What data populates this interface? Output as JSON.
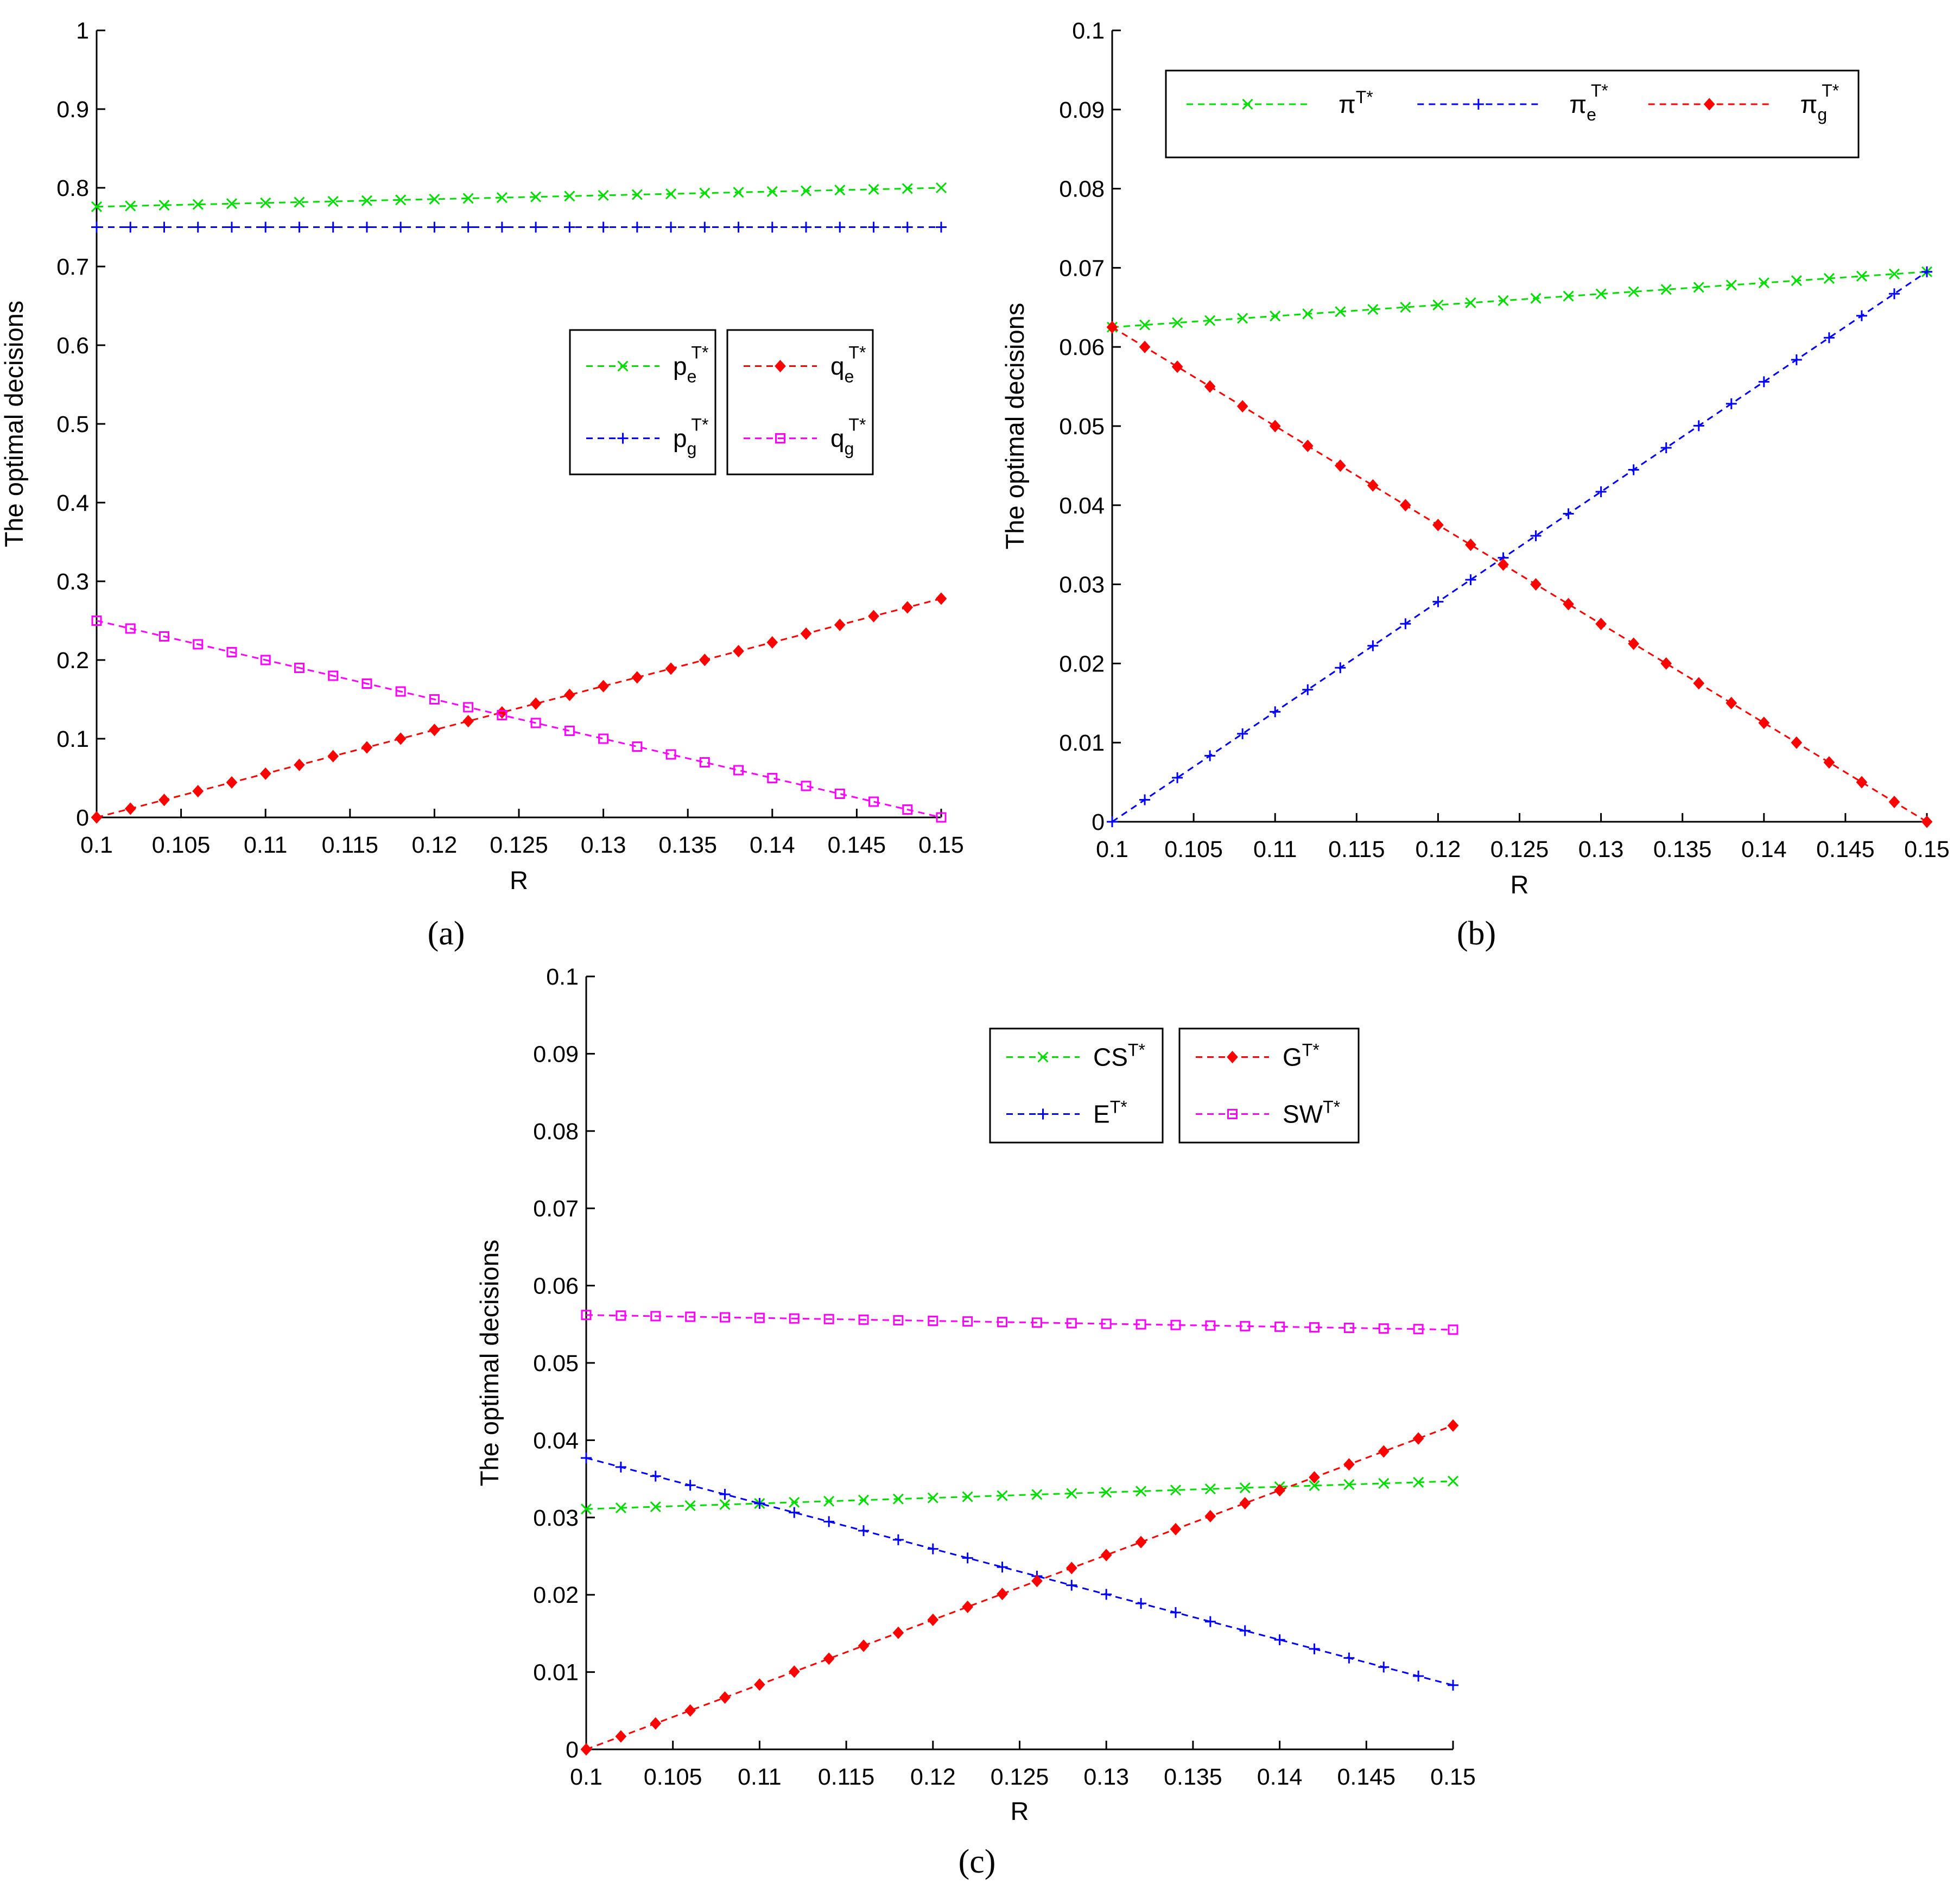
{
  "captions": [
    "(a)",
    "(b)",
    "(c)"
  ],
  "colors": {
    "green": "#00e000",
    "blue": "#0000ff",
    "red": "#ff0000",
    "magenta": "#ff00ff"
  },
  "chart_data": [
    {
      "type": "line",
      "panel": "a",
      "xlabel": "R",
      "ylabel": "The optimal decisions",
      "xlim": [
        0.1,
        0.15
      ],
      "ylim": [
        0,
        1
      ],
      "xticks": [
        "0.1",
        "0.105",
        "0.11",
        "0.115",
        "0.12",
        "0.125",
        "0.13",
        "0.135",
        "0.14",
        "0.145",
        "0.15"
      ],
      "yticks": [
        "0",
        "0.1",
        "0.2",
        "0.3",
        "0.4",
        "0.5",
        "0.6",
        "0.7",
        "0.8",
        "0.9",
        "1"
      ],
      "grid": false,
      "legend_placement": "center-right",
      "legend_groups": [
        [
          "p_e",
          "p_g"
        ],
        [
          "q_e",
          "q_g"
        ]
      ],
      "series": [
        {
          "key": "p_e",
          "base": "p",
          "sub": "e",
          "sup": "T*",
          "color": "green",
          "marker": "x",
          "x_start": 0.1,
          "x_end": 0.15,
          "y_start": 0.776,
          "y_end": 0.8
        },
        {
          "key": "p_g",
          "base": "p",
          "sub": "g",
          "sup": "T*",
          "color": "blue",
          "marker": "+",
          "x_start": 0.1,
          "x_end": 0.15,
          "y_start": 0.75,
          "y_end": 0.75
        },
        {
          "key": "q_e",
          "base": "q",
          "sub": "e",
          "sup": "T*",
          "color": "red",
          "marker": "diamond",
          "x_start": 0.1,
          "x_end": 0.15,
          "y_start": 0.0,
          "y_end": 0.278
        },
        {
          "key": "q_g",
          "base": "q",
          "sub": "g",
          "sup": "T*",
          "color": "magenta",
          "marker": "square",
          "x_start": 0.1,
          "x_end": 0.15,
          "y_start": 0.25,
          "y_end": 0.0
        }
      ]
    },
    {
      "type": "line",
      "panel": "b",
      "xlabel": "R",
      "ylabel": "The optimal decisions",
      "xlim": [
        0.1,
        0.15
      ],
      "ylim": [
        0,
        0.1
      ],
      "xticks": [
        "0.1",
        "0.105",
        "0.11",
        "0.115",
        "0.12",
        "0.125",
        "0.13",
        "0.135",
        "0.14",
        "0.145",
        "0.15"
      ],
      "yticks": [
        "0",
        "0.01",
        "0.02",
        "0.03",
        "0.04",
        "0.05",
        "0.06",
        "0.07",
        "0.08",
        "0.09",
        "0.1"
      ],
      "grid": false,
      "legend_placement": "top",
      "legend_groups": [
        [
          "pi",
          "pi_e",
          "pi_g"
        ]
      ],
      "series": [
        {
          "key": "pi",
          "base": "π",
          "sub": "",
          "sup": "T*",
          "color": "green",
          "marker": "x",
          "x_start": 0.1,
          "x_end": 0.15,
          "y_start": 0.0625,
          "y_end": 0.0695
        },
        {
          "key": "pi_e",
          "base": "π",
          "sub": "e",
          "sup": "T*",
          "color": "blue",
          "marker": "+",
          "x_start": 0.1,
          "x_end": 0.15,
          "y_start": 0.0,
          "y_end": 0.0695
        },
        {
          "key": "pi_g",
          "base": "π",
          "sub": "g",
          "sup": "T*",
          "color": "red",
          "marker": "diamond",
          "x_start": 0.1,
          "x_end": 0.15,
          "y_start": 0.0625,
          "y_end": 0.0
        }
      ]
    },
    {
      "type": "line",
      "panel": "c",
      "xlabel": "R",
      "ylabel": "The optimal decisions",
      "xlim": [
        0.1,
        0.15
      ],
      "ylim": [
        0,
        0.1
      ],
      "xticks": [
        "0.1",
        "0.105",
        "0.11",
        "0.115",
        "0.12",
        "0.125",
        "0.13",
        "0.135",
        "0.14",
        "0.145",
        "0.15"
      ],
      "yticks": [
        "0",
        "0.01",
        "0.02",
        "0.03",
        "0.04",
        "0.05",
        "0.06",
        "0.07",
        "0.08",
        "0.09",
        "0.1"
      ],
      "grid": false,
      "legend_placement": "top-right",
      "legend_groups": [
        [
          "CS",
          "E"
        ],
        [
          "G",
          "SW"
        ]
      ],
      "series": [
        {
          "key": "CS",
          "base": "CS",
          "sub": "",
          "sup": "T*",
          "color": "green",
          "marker": "x",
          "x_start": 0.1,
          "x_end": 0.15,
          "y_start": 0.0311,
          "y_end": 0.0347
        },
        {
          "key": "E",
          "base": "E",
          "sub": "",
          "sup": "T*",
          "color": "blue",
          "marker": "+",
          "x_start": 0.1,
          "x_end": 0.15,
          "y_start": 0.0377,
          "y_end": 0.0083
        },
        {
          "key": "G",
          "base": "G",
          "sub": "",
          "sup": "T*",
          "color": "red",
          "marker": "diamond",
          "x_start": 0.1,
          "x_end": 0.15,
          "y_start": 0.0,
          "y_end": 0.0419
        },
        {
          "key": "SW",
          "base": "SW",
          "sub": "",
          "sup": "T*",
          "color": "magenta",
          "marker": "square",
          "x_start": 0.1,
          "x_end": 0.15,
          "y_start": 0.0562,
          "y_end": 0.0543
        }
      ]
    }
  ]
}
